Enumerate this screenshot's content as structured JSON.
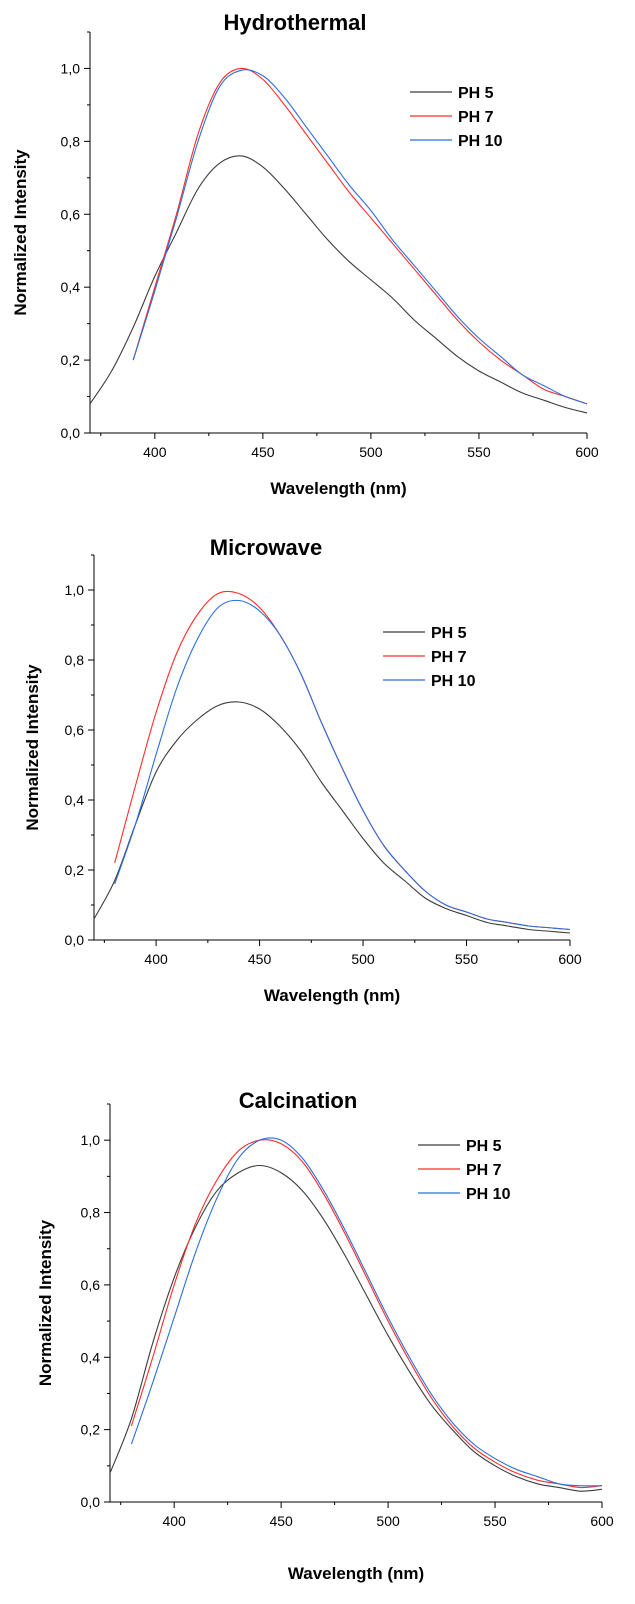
{
  "chart_data": [
    {
      "type": "line",
      "title": "Hydrothermal",
      "xlabel": "Wavelength (nm)",
      "ylabel": "Normalized Intensity",
      "xlim": [
        370,
        600
      ],
      "ylim": [
        0,
        1.1
      ],
      "xticks": [
        400,
        450,
        500,
        550,
        600
      ],
      "yticks": [
        0,
        0.2,
        0.4,
        0.6,
        0.8,
        1.0
      ],
      "xtick_labels": [
        "400",
        "450",
        "500",
        "550",
        "600"
      ],
      "ytick_labels": [
        "0,0",
        "0,2",
        "0,4",
        "0,6",
        "0,8",
        "1,0"
      ],
      "grid": false,
      "legend_position": "top-right",
      "series": [
        {
          "name": "PH 5",
          "color": "#3c3c3c",
          "x": [
            370,
            380,
            390,
            400,
            410,
            420,
            430,
            440,
            450,
            460,
            470,
            480,
            490,
            500,
            510,
            520,
            530,
            540,
            550,
            560,
            570,
            580,
            590,
            600
          ],
          "y": [
            0.08,
            0.17,
            0.29,
            0.43,
            0.55,
            0.67,
            0.74,
            0.76,
            0.73,
            0.67,
            0.6,
            0.53,
            0.47,
            0.42,
            0.37,
            0.31,
            0.26,
            0.21,
            0.17,
            0.14,
            0.11,
            0.09,
            0.07,
            0.055
          ]
        },
        {
          "name": "PH 7",
          "color": "#ff2a2a",
          "x": [
            390,
            400,
            410,
            420,
            430,
            440,
            450,
            460,
            470,
            480,
            490,
            500,
            510,
            520,
            530,
            540,
            550,
            560,
            570,
            580,
            590,
            600
          ],
          "y": [
            0.2,
            0.4,
            0.6,
            0.82,
            0.96,
            1.0,
            0.97,
            0.9,
            0.82,
            0.74,
            0.66,
            0.59,
            0.52,
            0.45,
            0.38,
            0.31,
            0.25,
            0.2,
            0.16,
            0.12,
            0.1,
            0.08
          ]
        },
        {
          "name": "PH 10",
          "color": "#2a6fdb",
          "x": [
            390,
            400,
            410,
            420,
            430,
            440,
            450,
            460,
            470,
            480,
            490,
            500,
            510,
            520,
            530,
            540,
            550,
            560,
            570,
            580,
            590,
            600
          ],
          "y": [
            0.2,
            0.39,
            0.59,
            0.8,
            0.95,
            0.995,
            0.98,
            0.92,
            0.84,
            0.76,
            0.68,
            0.61,
            0.53,
            0.46,
            0.39,
            0.32,
            0.26,
            0.21,
            0.16,
            0.13,
            0.1,
            0.08
          ]
        }
      ],
      "legend": {
        "labels": [
          "PH 5",
          "PH 7",
          "PH 10"
        ]
      }
    },
    {
      "type": "line",
      "title": "Microwave",
      "xlabel": "Wavelength (nm)",
      "ylabel": "Normalized Intensity",
      "xlim": [
        370,
        600
      ],
      "ylim": [
        0,
        1.1
      ],
      "xticks": [
        400,
        450,
        500,
        550,
        600
      ],
      "yticks": [
        0,
        0.2,
        0.4,
        0.6,
        0.8,
        1.0
      ],
      "xtick_labels": [
        "400",
        "450",
        "500",
        "550",
        "600"
      ],
      "ytick_labels": [
        "0,0",
        "0,2",
        "0,4",
        "0,6",
        "0,8",
        "1,0"
      ],
      "grid": false,
      "legend_position": "top-right",
      "series": [
        {
          "name": "PH 5",
          "color": "#3c3c3c",
          "x": [
            370,
            380,
            390,
            400,
            410,
            420,
            430,
            440,
            450,
            460,
            470,
            480,
            490,
            500,
            510,
            520,
            530,
            540,
            550,
            560,
            570,
            580,
            590,
            600
          ],
          "y": [
            0.06,
            0.17,
            0.33,
            0.48,
            0.57,
            0.63,
            0.67,
            0.68,
            0.66,
            0.61,
            0.54,
            0.45,
            0.37,
            0.29,
            0.22,
            0.17,
            0.12,
            0.09,
            0.07,
            0.05,
            0.04,
            0.03,
            0.025,
            0.02
          ]
        },
        {
          "name": "PH 7",
          "color": "#ff2a2a",
          "x": [
            380,
            390,
            400,
            410,
            420,
            430,
            440,
            450,
            460,
            470,
            480,
            490,
            500,
            510,
            520,
            530,
            540,
            550,
            560,
            570,
            580,
            590,
            600
          ],
          "y": [
            0.22,
            0.44,
            0.65,
            0.82,
            0.93,
            0.99,
            0.99,
            0.95,
            0.87,
            0.76,
            0.62,
            0.49,
            0.37,
            0.27,
            0.2,
            0.14,
            0.1,
            0.08,
            0.06,
            0.05,
            0.04,
            0.035,
            0.03
          ]
        },
        {
          "name": "PH 10",
          "color": "#2a6fdb",
          "x": [
            380,
            390,
            400,
            410,
            420,
            430,
            440,
            450,
            460,
            470,
            480,
            490,
            500,
            510,
            520,
            530,
            540,
            550,
            560,
            570,
            580,
            590,
            600
          ],
          "y": [
            0.16,
            0.33,
            0.53,
            0.72,
            0.86,
            0.95,
            0.97,
            0.94,
            0.87,
            0.76,
            0.62,
            0.49,
            0.37,
            0.27,
            0.2,
            0.14,
            0.1,
            0.08,
            0.06,
            0.05,
            0.04,
            0.035,
            0.03
          ]
        }
      ],
      "legend": {
        "labels": [
          "PH 5",
          "PH 7",
          "PH 10"
        ]
      }
    },
    {
      "type": "line",
      "title": "Calcination",
      "xlabel": "Wavelength (nm)",
      "ylabel": "Normalized Intensity",
      "xlim": [
        370,
        600
      ],
      "ylim": [
        0,
        1.1
      ],
      "xticks": [
        400,
        450,
        500,
        550,
        600
      ],
      "yticks": [
        0,
        0.2,
        0.4,
        0.6,
        0.8,
        1.0
      ],
      "xtick_labels": [
        "400",
        "450",
        "500",
        "550",
        "600"
      ],
      "ytick_labels": [
        "0,0",
        "0,2",
        "0,4",
        "0,6",
        "0,8",
        "1,0"
      ],
      "grid": false,
      "legend_position": "top-right",
      "series": [
        {
          "name": "PH 5",
          "color": "#3c3c3c",
          "x": [
            370,
            380,
            390,
            400,
            410,
            420,
            430,
            440,
            450,
            460,
            470,
            480,
            490,
            500,
            510,
            520,
            530,
            540,
            550,
            560,
            570,
            580,
            590,
            600
          ],
          "y": [
            0.08,
            0.23,
            0.44,
            0.62,
            0.76,
            0.86,
            0.91,
            0.93,
            0.91,
            0.86,
            0.78,
            0.68,
            0.57,
            0.46,
            0.36,
            0.27,
            0.2,
            0.14,
            0.1,
            0.07,
            0.05,
            0.04,
            0.03,
            0.035
          ]
        },
        {
          "name": "PH 7",
          "color": "#ff2a2a",
          "x": [
            380,
            390,
            400,
            410,
            420,
            430,
            440,
            450,
            460,
            470,
            480,
            490,
            500,
            510,
            520,
            530,
            540,
            550,
            560,
            570,
            580,
            590,
            600
          ],
          "y": [
            0.21,
            0.4,
            0.6,
            0.77,
            0.89,
            0.97,
            1.0,
            0.99,
            0.94,
            0.85,
            0.74,
            0.62,
            0.5,
            0.39,
            0.29,
            0.21,
            0.15,
            0.11,
            0.08,
            0.06,
            0.05,
            0.04,
            0.045
          ]
        },
        {
          "name": "PH 10",
          "color": "#2a6fdb",
          "x": [
            380,
            390,
            400,
            410,
            420,
            430,
            440,
            450,
            460,
            470,
            480,
            490,
            500,
            510,
            520,
            530,
            540,
            550,
            560,
            570,
            580,
            590,
            600
          ],
          "y": [
            0.16,
            0.33,
            0.51,
            0.69,
            0.84,
            0.95,
            1.0,
            1.0,
            0.95,
            0.86,
            0.75,
            0.63,
            0.51,
            0.4,
            0.3,
            0.22,
            0.16,
            0.12,
            0.09,
            0.07,
            0.05,
            0.045,
            0.045
          ]
        }
      ],
      "legend": {
        "labels": [
          "PH 5",
          "PH 7",
          "PH 10"
        ]
      }
    }
  ]
}
